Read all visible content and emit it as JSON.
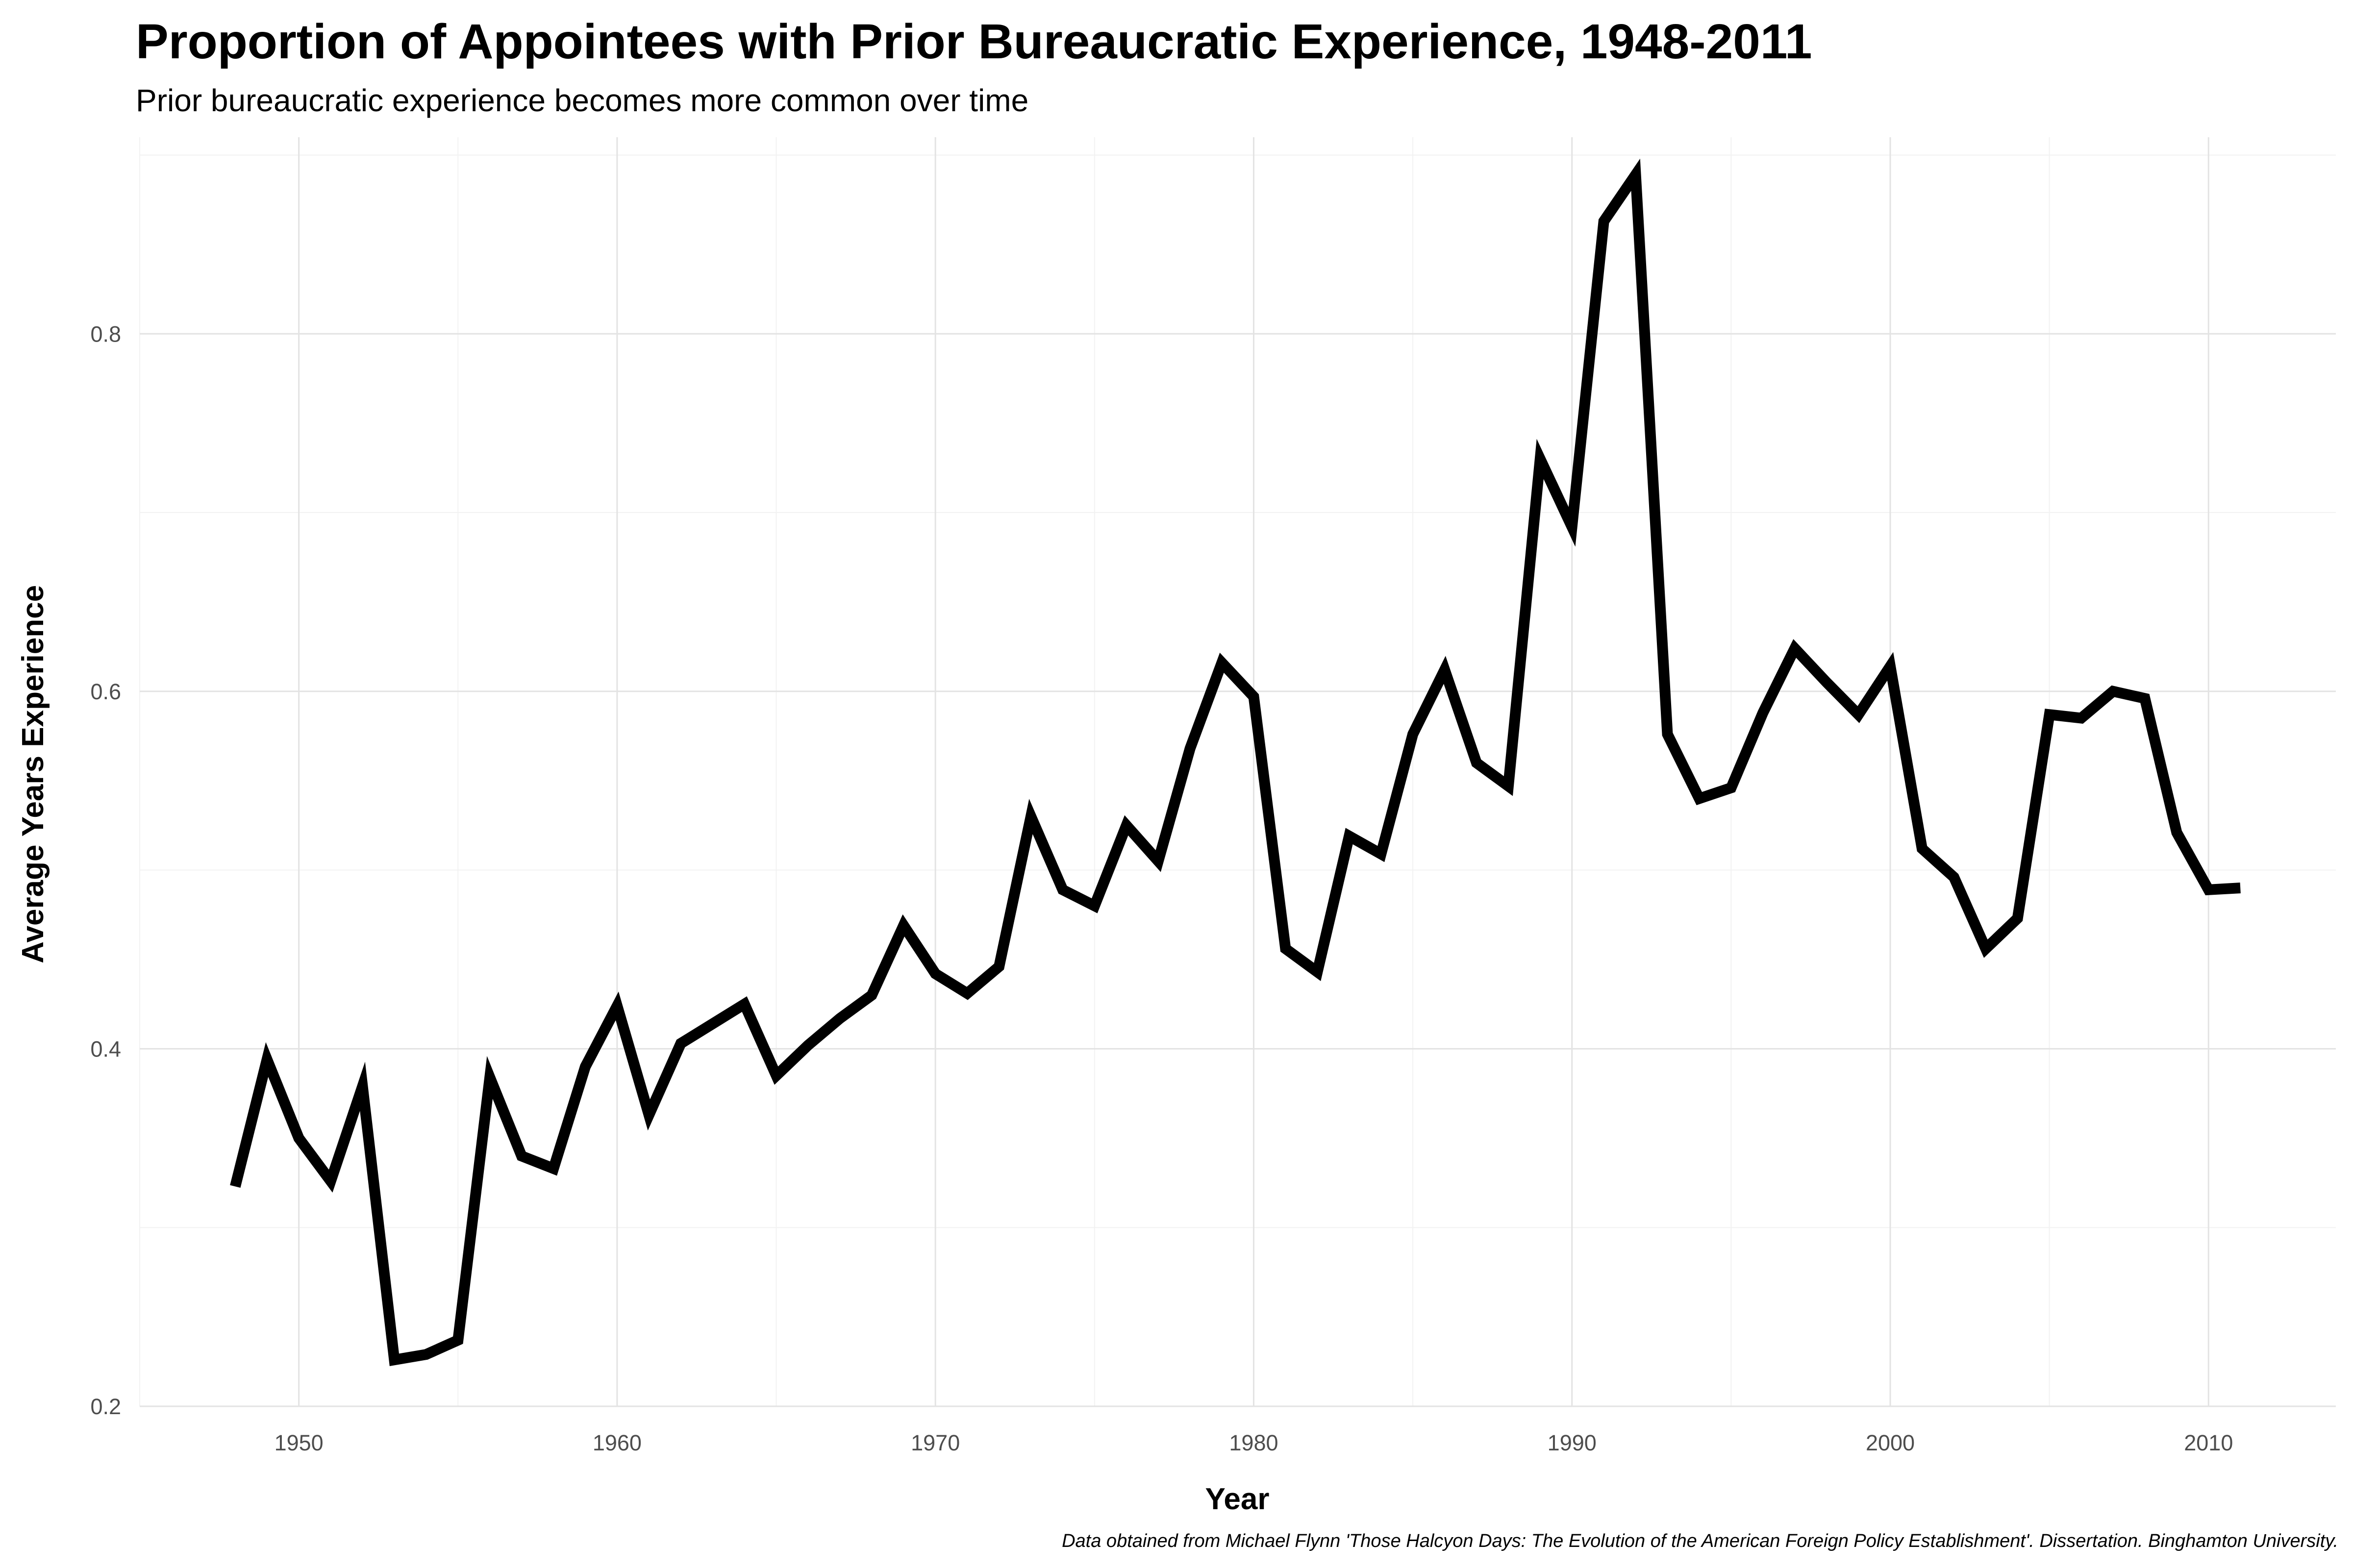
{
  "chart_data": {
    "type": "line",
    "title": "Proportion of Appointees with Prior Bureaucratic Experience, 1948-2011",
    "subtitle": "Prior bureaucratic experience becomes more common over time",
    "xlabel": "Year",
    "ylabel": "Average Years Experience",
    "caption": "Data obtained from Michael Flynn 'Those Halcyon Days: The Evolution of the American Foreign Policy Establishment'. Dissertation. Binghamton University.",
    "xlim": [
      1945,
      2014
    ],
    "ylim": [
      0.2,
      0.91
    ],
    "x_ticks": [
      1950,
      1960,
      1970,
      1980,
      1990,
      2000,
      2010
    ],
    "x_tick_labels": [
      "1950",
      "1960",
      "1970",
      "1980",
      "1990",
      "2000",
      "2010"
    ],
    "y_ticks": [
      0.2,
      0.4,
      0.6,
      0.8
    ],
    "y_tick_labels": [
      "0.2",
      "0.4",
      "0.6",
      "0.8"
    ],
    "grid": true,
    "line_color": "#000000",
    "series": [
      {
        "x": [
          1948,
          1949,
          1950,
          1951,
          1952,
          1953,
          1954,
          1955,
          1956,
          1957,
          1958,
          1959,
          1960,
          1961,
          1962,
          1963,
          1964,
          1965,
          1966,
          1967,
          1968,
          1969,
          1970,
          1971,
          1972,
          1973,
          1974,
          1975,
          1976,
          1977,
          1978,
          1979,
          1980,
          1981,
          1982,
          1983,
          1984,
          1985,
          1986,
          1987,
          1988,
          1989,
          1990,
          1991,
          1992,
          1993,
          1994,
          1995,
          1996,
          1997,
          1998,
          1999,
          2000,
          2001,
          2002,
          2003,
          2004,
          2005,
          2006,
          2007,
          2008,
          2009,
          2010,
          2011
        ],
        "y": [
          0.323,
          0.394,
          0.35,
          0.326,
          0.379,
          0.226,
          0.229,
          0.237,
          0.384,
          0.34,
          0.333,
          0.39,
          0.424,
          0.363,
          0.403,
          0.414,
          0.425,
          0.385,
          0.402,
          0.417,
          0.43,
          0.469,
          0.442,
          0.431,
          0.446,
          0.53,
          0.489,
          0.48,
          0.525,
          0.505,
          0.568,
          0.616,
          0.597,
          0.456,
          0.443,
          0.519,
          0.509,
          0.576,
          0.612,
          0.56,
          0.547,
          0.73,
          0.692,
          0.863,
          0.889,
          0.576,
          0.54,
          0.546,
          0.588,
          0.624,
          0.605,
          0.587,
          0.614,
          0.512,
          0.496,
          0.456,
          0.473,
          0.587,
          0.585,
          0.6,
          0.596,
          0.521,
          0.489,
          0.49
        ]
      }
    ]
  }
}
